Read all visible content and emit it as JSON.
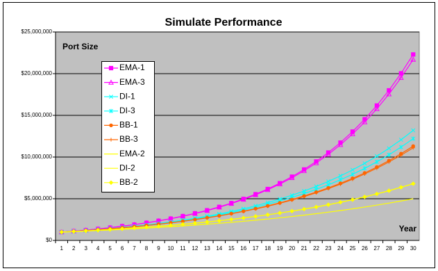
{
  "chart_data": {
    "type": "line",
    "title": "Simulate Performance",
    "y_label": "Port Size",
    "x_label": "Year",
    "categories": [
      "1",
      "2",
      "3",
      "4",
      "5",
      "6",
      "7",
      "8",
      "9",
      "10",
      "11",
      "12",
      "13",
      "14",
      "15",
      "16",
      "17",
      "18",
      "19",
      "20",
      "21",
      "22",
      "23",
      "24",
      "25",
      "26",
      "27",
      "28",
      "29",
      "30"
    ],
    "ylim": [
      0,
      25000000
    ],
    "yticks": [
      {
        "value": 0,
        "label": "$0"
      },
      {
        "value": 5000000,
        "label": "$5,000,000"
      },
      {
        "value": 10000000,
        "label": "$10,000,000"
      },
      {
        "value": 15000000,
        "label": "$15,000,000"
      },
      {
        "value": 20000000,
        "label": "$20,000,000"
      },
      {
        "value": 25000000,
        "label": "$25,000,000"
      }
    ],
    "grid": true,
    "legend": "upper left",
    "series": [
      {
        "name": "EMA-1",
        "color": "#ff00ff",
        "marker": "square",
        "values": [
          1000000,
          1113000,
          1238800,
          1378800,
          1534600,
          1708000,
          1901000,
          2115800,
          2354900,
          2621000,
          2917200,
          3246900,
          3613800,
          4022200,
          4476700,
          4982600,
          5545600,
          6172300,
          6869800,
          7646100,
          8510100,
          9471700,
          10542000,
          11733300,
          13059200,
          14534900,
          16177300,
          18005300,
          20039900,
          22304400
        ]
      },
      {
        "name": "EMA-3",
        "color": "#ff00ff",
        "marker": "triangle",
        "values": [
          1000000,
          1112000,
          1236500,
          1374900,
          1528800,
          1700000,
          1890300,
          2101900,
          2337200,
          2598900,
          2889900,
          3213400,
          3573200,
          3973200,
          4418000,
          4912600,
          5462500,
          6074000,
          6753900,
          7510000,
          8350600,
          9285300,
          10324700,
          11480500,
          12765500,
          14194500,
          15783200,
          17549800,
          19514300,
          21698400
        ]
      },
      {
        "name": "DI-1",
        "color": "#00ffff",
        "marker": "x",
        "values": [
          1000000,
          1093100,
          1194800,
          1305900,
          1427500,
          1560300,
          1705500,
          1864200,
          2037700,
          2227300,
          2434500,
          2661000,
          2908600,
          3179300,
          3475100,
          3798500,
          4151900,
          4538200,
          4960500,
          5422100,
          5926600,
          6478100,
          7080900,
          7739800,
          8460000,
          9247200,
          10107700,
          11048200,
          12076200,
          13200000
        ]
      },
      {
        "name": "DI-3",
        "color": "#00ffff",
        "marker": "star",
        "values": [
          1000000,
          1090100,
          1188300,
          1295400,
          1412100,
          1539300,
          1678000,
          1829200,
          1994000,
          2173700,
          2369500,
          2583000,
          2815700,
          3069400,
          3345900,
          3647400,
          3976000,
          4334200,
          4724700,
          5150400,
          5614400,
          6120200,
          6671600,
          7272700,
          7928000,
          8642200,
          9420900,
          10269700,
          11194900,
          12203600
        ]
      },
      {
        "name": "BB-1",
        "color": "#ff6600",
        "marker": "circle",
        "values": [
          1000000,
          1087200,
          1182100,
          1285200,
          1397300,
          1519200,
          1651700,
          1795800,
          1952500,
          2122800,
          2308000,
          2509300,
          2728200,
          2966200,
          3224900,
          3506200,
          3812100,
          4144600,
          4506200,
          4899300,
          5326700,
          5791400,
          6296600,
          6845900,
          7443100,
          8092400,
          8798300,
          9565800,
          10400300,
          11307500
        ]
      },
      {
        "name": "BB-3",
        "color": "#ff6600",
        "marker": "plus",
        "values": [
          1000000,
          1086500,
          1180600,
          1282800,
          1393900,
          1514500,
          1645600,
          1788000,
          1942900,
          2111000,
          2293800,
          2492300,
          2708000,
          2942500,
          3197100,
          3473800,
          3774500,
          4101200,
          4456200,
          4842000,
          5261100,
          5716600,
          6211300,
          6749100,
          7333100,
          7967800,
          8657200,
          9406200,
          10220800,
          11105300
        ]
      },
      {
        "name": "EMA-2",
        "color": "#ffff00",
        "marker": "none",
        "values": [
          1000000,
          1057100,
          1117400,
          1181100,
          1248500,
          1319800,
          1395100,
          1474700,
          1558800,
          1647800,
          1741800,
          1841200,
          1946300,
          2057300,
          2174700,
          2298800,
          2430000,
          2568600,
          2715200,
          2870200,
          3033900,
          3207000,
          3390000,
          3583500,
          3788000,
          4004100,
          4232600,
          4474100,
          4729400,
          4999300
        ]
      },
      {
        "name": "DI-2",
        "color": "#ffff00",
        "marker": "none",
        "values": [
          1000000,
          1068300,
          1141400,
          1219400,
          1302700,
          1391800,
          1486900,
          1588500,
          1697100,
          1813100,
          1937000,
          2069400,
          2210800,
          2361900,
          2523300,
          2695800,
          2880000,
          3076900,
          3287100,
          3511800,
          3751800,
          4008200,
          4282100,
          4574800,
          4887400,
          5221400,
          5578300,
          5959500,
          6366800,
          6801900
        ]
      },
      {
        "name": "BB-2",
        "color": "#ffff00",
        "marker": "diamond",
        "values": [
          1000000,
          1068300,
          1141400,
          1219400,
          1302700,
          1391800,
          1486900,
          1588500,
          1697100,
          1813100,
          1937000,
          2069400,
          2210800,
          2361900,
          2523300,
          2695800,
          2880000,
          3076900,
          3287100,
          3511800,
          3751800,
          4008200,
          4282100,
          4574800,
          4887400,
          5221400,
          5578300,
          5959500,
          6366800,
          6801900
        ]
      }
    ]
  }
}
